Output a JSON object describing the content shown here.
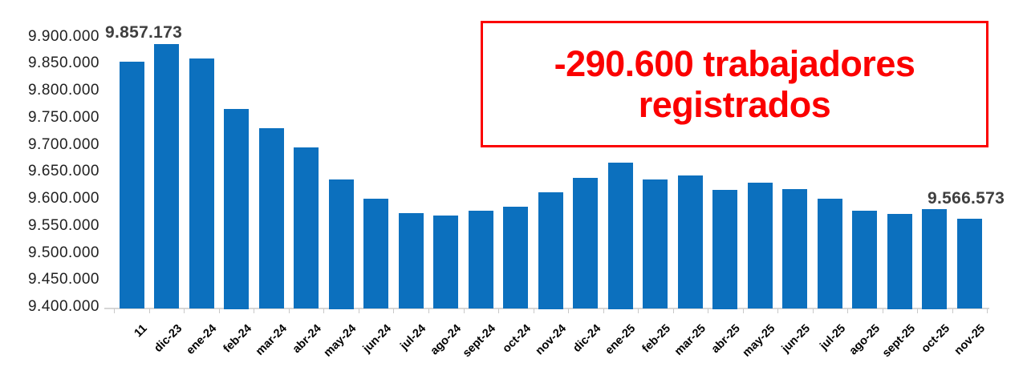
{
  "chart_data": {
    "type": "bar",
    "title": "",
    "xlabel": "",
    "ylabel": "",
    "categories": [
      "11",
      "dic-23",
      "ene-24",
      "feb-24",
      "mar-24",
      "abr-24",
      "may-24",
      "jun-24",
      "jul-24",
      "ago-24",
      "sept-24",
      "oct-24",
      "nov-24",
      "dic-24",
      "ene-25",
      "feb-25",
      "mar-25",
      "abr-25",
      "may-25",
      "jun-25",
      "jul-25",
      "ago-25",
      "sept-25",
      "oct-25",
      "nov-25"
    ],
    "values": [
      9857173,
      9889000,
      9863000,
      9770000,
      9734000,
      9699000,
      9640000,
      9604000,
      9577000,
      9573000,
      9582000,
      9589000,
      9615000,
      9642000,
      9670000,
      9639000,
      9647000,
      9620000,
      9634000,
      9621000,
      9603000,
      9581000,
      9575000,
      9585000,
      9566573
    ],
    "ylim": [
      9400000,
      9900000
    ],
    "y_tick_step": 50000,
    "y_tick_labels": [
      "9.400.000",
      "9.450.000",
      "9.500.000",
      "9.550.000",
      "9.600.000",
      "9.650.000",
      "9.700.000",
      "9.750.000",
      "9.800.000",
      "9.850.000",
      "9.900.000"
    ],
    "grid": false,
    "legend": "none",
    "bar_color": "#0c70be",
    "axis_color": "#d6d6d6",
    "data_label_color": "#3f3f3f",
    "data_labels": [
      {
        "index": 0,
        "text": "9.857.173"
      },
      {
        "index": 24,
        "text": "9.566.573"
      }
    ]
  },
  "callout": {
    "text": "-290.600 trabajadores registrados",
    "color": "#fb0000"
  }
}
